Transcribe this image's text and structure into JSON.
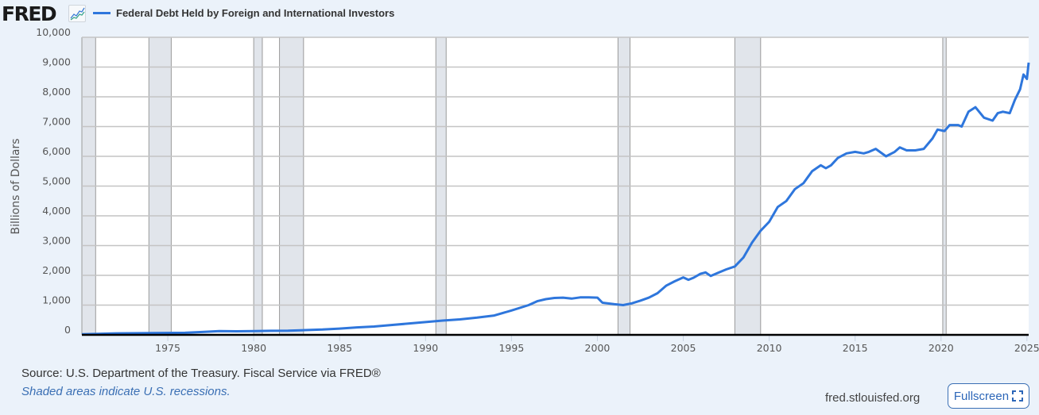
{
  "header": {
    "logo_text": "FRED",
    "logo_icon": "line-chart-icon",
    "legend_label": "Federal Debt Held by Foreign and International Investors",
    "series_color": "#2e76dc"
  },
  "footer": {
    "source": "Source: U.S. Department of the Treasury. Fiscal Service via FRED®",
    "note": "Shaded areas indicate U.S. recessions.",
    "site": "fred.stlouisfed.org",
    "fullscreen_label": "Fullscreen",
    "fullscreen_icon": "expand-icon"
  },
  "chart_data": {
    "type": "line",
    "title": "Federal Debt Held by Foreign and International Investors",
    "xlabel": "",
    "ylabel": "Billions of Dollars",
    "ylim": [
      0,
      10000
    ],
    "xlim": [
      1970,
      2025.1
    ],
    "yticks": [
      0,
      1000,
      2000,
      3000,
      4000,
      5000,
      6000,
      7000,
      8000,
      9000,
      10000
    ],
    "ytick_labels": [
      "0",
      "1,000",
      "2,000",
      "3,000",
      "4,000",
      "5,000",
      "6,000",
      "7,000",
      "8,000",
      "9,000",
      "10,000"
    ],
    "xticks": [
      1975,
      1980,
      1985,
      1990,
      1995,
      2000,
      2005,
      2010,
      2015,
      2020,
      2025
    ],
    "grid": true,
    "legend_position": "top",
    "recessions": [
      [
        1970.0,
        1970.8
      ],
      [
        1973.9,
        1975.2
      ],
      [
        1980.0,
        1980.5
      ],
      [
        1981.5,
        1982.9
      ],
      [
        1990.6,
        1991.2
      ],
      [
        2001.2,
        2001.9
      ],
      [
        2008.0,
        2009.5
      ],
      [
        2020.1,
        2020.3
      ]
    ],
    "series": [
      {
        "name": "Federal Debt Held by Foreign and International Investors",
        "color": "#2e76dc",
        "x": [
          1970,
          1972,
          1974,
          1976,
          1977,
          1978,
          1979,
          1980,
          1981,
          1982,
          1983,
          1984,
          1985,
          1986,
          1987,
          1988,
          1989,
          1990,
          1991,
          1992,
          1993,
          1994,
          1995,
          1996,
          1996.5,
          1997,
          1997.5,
          1998,
          1998.5,
          1999,
          1999.5,
          2000,
          2000.3,
          2001,
          2001.5,
          2002,
          2002.5,
          2003,
          2003.5,
          2004,
          2004.5,
          2005,
          2005.3,
          2005.6,
          2006,
          2006.3,
          2006.6,
          2007,
          2007.5,
          2008,
          2008.5,
          2009,
          2009.5,
          2010,
          2010.5,
          2011,
          2011.5,
          2012,
          2012.5,
          2013,
          2013.3,
          2013.6,
          2014,
          2014.5,
          2015,
          2015.5,
          2015.8,
          2016.2,
          2016.8,
          2017.3,
          2017.6,
          2018,
          2018.5,
          2019,
          2019.5,
          2019.8,
          2020.2,
          2020.5,
          2021,
          2021.2,
          2021.6,
          2022,
          2022.5,
          2023,
          2023.3,
          2023.6,
          2024,
          2024.3,
          2024.6,
          2024.8,
          2025,
          2025.1
        ],
        "values": [
          20,
          50,
          60,
          70,
          95,
          125,
          120,
          125,
          135,
          140,
          160,
          180,
          210,
          250,
          280,
          330,
          380,
          430,
          480,
          520,
          580,
          650,
          820,
          1000,
          1130,
          1200,
          1240,
          1250,
          1220,
          1260,
          1260,
          1250,
          1080,
          1030,
          1000,
          1060,
          1150,
          1250,
          1400,
          1650,
          1800,
          1930,
          1850,
          1920,
          2050,
          2100,
          1980,
          2080,
          2200,
          2300,
          2600,
          3100,
          3500,
          3800,
          4300,
          4500,
          4900,
          5100,
          5500,
          5700,
          5600,
          5700,
          5950,
          6100,
          6150,
          6100,
          6150,
          6250,
          6000,
          6150,
          6300,
          6200,
          6200,
          6250,
          6600,
          6900,
          6850,
          7050,
          7050,
          7000,
          7500,
          7650,
          7300,
          7200,
          7450,
          7500,
          7450,
          7900,
          8250,
          8750,
          8600,
          9150
        ]
      }
    ]
  }
}
